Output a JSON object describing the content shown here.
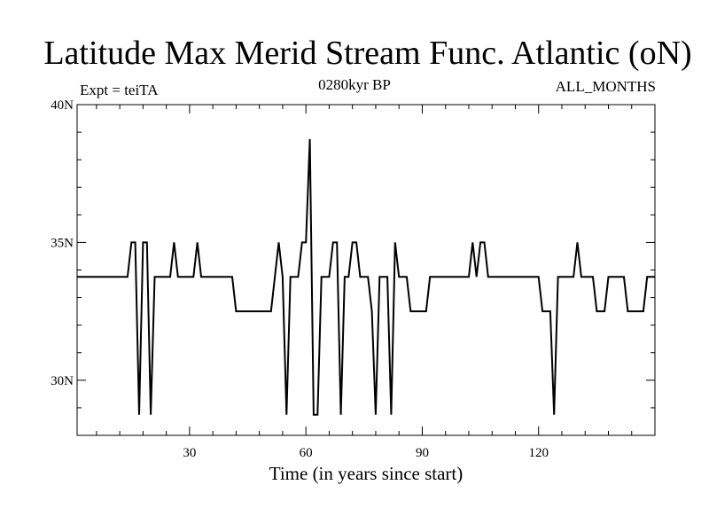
{
  "chart_data": {
    "type": "line",
    "title": "Latitude Max Merid Stream Func. Atlantic (oN)",
    "subtitle_left": "Expt = teiTA",
    "subtitle_center": "0280kyr BP",
    "subtitle_right": "ALL_MONTHS",
    "xlabel": "Time (in years since start)",
    "ylabel": "",
    "xlim": [
      1,
      150
    ],
    "ylim": [
      28,
      40
    ],
    "x_ticks": [
      30,
      60,
      90,
      120
    ],
    "x_tick_labels": [
      "30",
      "60",
      "90",
      "120"
    ],
    "y_ticks": [
      30,
      35,
      40
    ],
    "y_tick_labels": [
      "30N",
      "35N",
      "40N"
    ],
    "series": [
      {
        "values": [
          [
            1,
            33.75
          ],
          [
            14,
            33.75
          ],
          [
            15,
            35
          ],
          [
            16,
            35
          ],
          [
            17,
            28.75
          ],
          [
            18,
            35
          ],
          [
            19,
            35
          ],
          [
            20,
            28.75
          ],
          [
            21,
            33.75
          ],
          [
            25,
            33.75
          ],
          [
            26,
            35
          ],
          [
            27,
            33.75
          ],
          [
            31,
            33.75
          ],
          [
            32,
            35
          ],
          [
            33,
            33.75
          ],
          [
            41,
            33.75
          ],
          [
            42,
            32.5
          ],
          [
            51,
            32.5
          ],
          [
            53,
            35
          ],
          [
            54,
            33.75
          ],
          [
            55,
            28.75
          ],
          [
            56,
            33.75
          ],
          [
            58,
            33.75
          ],
          [
            59,
            35
          ],
          [
            60,
            35
          ],
          [
            61,
            38.75
          ],
          [
            62,
            28.75
          ],
          [
            63,
            28.75
          ],
          [
            64,
            33.75
          ],
          [
            66,
            33.75
          ],
          [
            67,
            35
          ],
          [
            68,
            35
          ],
          [
            69,
            28.75
          ],
          [
            70,
            33.75
          ],
          [
            71,
            33.75
          ],
          [
            72,
            35
          ],
          [
            73,
            35
          ],
          [
            74,
            33.75
          ],
          [
            76,
            33.75
          ],
          [
            77,
            32.5
          ],
          [
            78,
            28.75
          ],
          [
            79,
            33.75
          ],
          [
            81,
            33.75
          ],
          [
            82,
            28.75
          ],
          [
            83,
            35
          ],
          [
            84,
            33.75
          ],
          [
            86,
            33.75
          ],
          [
            87,
            32.5
          ],
          [
            91,
            32.5
          ],
          [
            92,
            33.75
          ],
          [
            102,
            33.75
          ],
          [
            103,
            35
          ],
          [
            104,
            33.75
          ],
          [
            105,
            35
          ],
          [
            106,
            35
          ],
          [
            107,
            33.75
          ],
          [
            120,
            33.75
          ],
          [
            121,
            32.5
          ],
          [
            123,
            32.5
          ],
          [
            124,
            28.75
          ],
          [
            125,
            33.75
          ],
          [
            129,
            33.75
          ],
          [
            130,
            35
          ],
          [
            131,
            33.75
          ],
          [
            134,
            33.75
          ],
          [
            135,
            32.5
          ],
          [
            137,
            32.5
          ],
          [
            138,
            33.75
          ],
          [
            142,
            33.75
          ],
          [
            143,
            32.5
          ],
          [
            147,
            32.5
          ],
          [
            148,
            33.75
          ],
          [
            150,
            33.75
          ]
        ]
      }
    ]
  }
}
